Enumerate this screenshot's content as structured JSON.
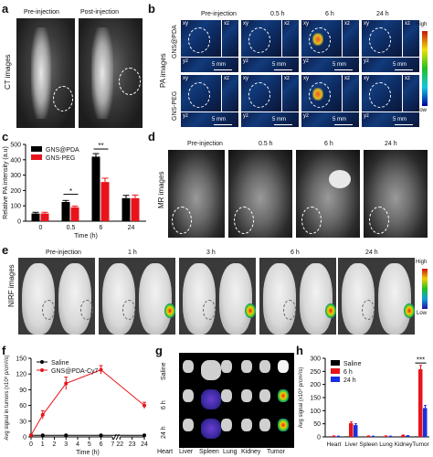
{
  "panels": {
    "a": {
      "label": "a",
      "side_label": "CT images",
      "titles": [
        "Pre-injection",
        "Post-injection"
      ]
    },
    "b": {
      "label": "b",
      "side_label": "PA images",
      "row_labels": [
        "GNS@PDA",
        "GNS-PEG"
      ],
      "times": [
        "Pre-injection",
        "0.5 h",
        "6 h",
        "24 h"
      ],
      "plane_xy": "xy",
      "plane_xz": "xz",
      "plane_yz": "yz",
      "scale_label": "5 mm",
      "colorbar_high": "High",
      "colorbar_low": "Low"
    },
    "c": {
      "label": "c"
    },
    "d": {
      "label": "d",
      "side_label": "MR images",
      "times": [
        "Pre-injection",
        "0.5 h",
        "6 h",
        "24 h"
      ]
    },
    "e": {
      "label": "e",
      "side_label": "NIRF images",
      "times": [
        "Pre-injection",
        "1 h",
        "3 h",
        "6 h",
        "24 h"
      ],
      "colorbar_high": "High",
      "colorbar_low": "Low"
    },
    "f": {
      "label": "f"
    },
    "g": {
      "label": "g",
      "row_labels": [
        "Saline",
        "6 h",
        "24 h"
      ],
      "organs": [
        "Heart",
        "Liver",
        "Spleen",
        "Lung",
        "Kidney",
        "Tumor"
      ]
    },
    "h": {
      "label": "h"
    }
  },
  "chart_data": [
    {
      "id": "c",
      "type": "bar",
      "categories": [
        "0",
        "0.5",
        "6",
        "24"
      ],
      "xlabel": "Time (h)",
      "ylabel": "Relative PA intensity (a.u)",
      "ylim": [
        0,
        500
      ],
      "yticks": [
        "0",
        "100",
        "200",
        "300",
        "400",
        "500"
      ],
      "series": [
        {
          "name": "GNS@PDA",
          "color": "#000000",
          "values": [
            50,
            125,
            420,
            150
          ],
          "errors": [
            8,
            10,
            20,
            18
          ]
        },
        {
          "name": "GNS-PEG",
          "color": "#e8131b",
          "values": [
            50,
            90,
            255,
            150
          ],
          "errors": [
            8,
            8,
            25,
            20
          ]
        }
      ],
      "annotations": [
        "*",
        "**"
      ]
    },
    {
      "id": "f",
      "type": "line",
      "xlabel": "Time (h)",
      "ylabel": "Avg signal in tumors (x10⁸ p/cm²/s)",
      "xticks": [
        "0",
        "1",
        "2",
        "3",
        "4",
        "5",
        "6",
        "7",
        "22",
        "23",
        "24"
      ],
      "ylim": [
        0,
        150
      ],
      "yticks": [
        "0",
        "30",
        "60",
        "90",
        "120",
        "150"
      ],
      "series": [
        {
          "name": "Saline",
          "color": "#000000",
          "x": [
            0,
            1,
            3,
            6,
            24
          ],
          "values": [
            3,
            3,
            3,
            3,
            3
          ]
        },
        {
          "name": "GNS@PDA-Cy7",
          "color": "#e8131b",
          "x": [
            0,
            1,
            3,
            6,
            24
          ],
          "values": [
            3,
            42,
            102,
            128,
            60
          ],
          "errors": [
            1,
            8,
            12,
            8,
            6
          ]
        }
      ]
    },
    {
      "id": "h",
      "type": "bar",
      "categories": [
        "Heart",
        "Liver",
        "Spleen",
        "Lung",
        "Kidney",
        "Tumor"
      ],
      "ylabel": "Avg signal (x10⁸ p/cm²/s)",
      "ylim": [
        0,
        300
      ],
      "yticks": [
        "0",
        "50",
        "100",
        "150",
        "200",
        "250",
        "300"
      ],
      "series": [
        {
          "name": "Saline",
          "color": "#000000",
          "values": [
            1,
            2,
            1,
            1,
            1,
            2
          ]
        },
        {
          "name": "6 h",
          "color": "#e8131b",
          "values": [
            3,
            52,
            3,
            3,
            6,
            258
          ],
          "errors": [
            1,
            5,
            1,
            1,
            1,
            15
          ]
        },
        {
          "name": "24 h",
          "color": "#1a30e0",
          "values": [
            2,
            45,
            2,
            2,
            4,
            110
          ],
          "errors": [
            1,
            5,
            1,
            1,
            1,
            10
          ]
        }
      ],
      "annotations": [
        "***"
      ]
    }
  ]
}
